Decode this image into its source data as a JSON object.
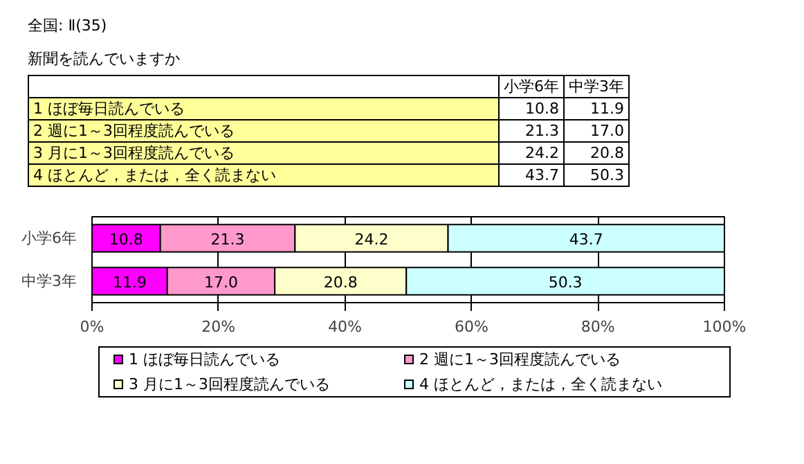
{
  "chart_data": {
    "type": "bar",
    "title": "全国: Ⅱ(35)",
    "subtitle": "新聞を読んでいますか",
    "categories": [
      "小学6年",
      "中学3年"
    ],
    "series": [
      {
        "name": "1  ほぼ毎日読んでいる",
        "color": "#ff00ff",
        "values": [
          10.8,
          11.9
        ],
        "value_labels": [
          "10.8",
          "11.9"
        ]
      },
      {
        "name": "2  週に1～3回程度読んでいる",
        "color": "#ff99cc",
        "values": [
          21.3,
          17.0
        ],
        "value_labels": [
          "21.3",
          "17.0"
        ]
      },
      {
        "name": "3  月に1～3回程度読んでいる",
        "color": "#ffffcc",
        "values": [
          24.2,
          20.8
        ],
        "value_labels": [
          "24.2",
          "20.8"
        ]
      },
      {
        "name": "4  ほとんど，または，全く読まない",
        "color": "#ccffff",
        "values": [
          43.7,
          50.3
        ],
        "value_labels": [
          "43.7",
          "50.3"
        ]
      }
    ],
    "stacked": true,
    "orientation": "horizontal",
    "xlim": [
      0,
      100
    ],
    "xticks": [
      {
        "value": 0,
        "label": "0%"
      },
      {
        "value": 20,
        "label": "20%"
      },
      {
        "value": 40,
        "label": "40%"
      },
      {
        "value": 60,
        "label": "60%"
      },
      {
        "value": 80,
        "label": "80%"
      },
      {
        "value": 100,
        "label": "100%"
      }
    ],
    "grid": "x",
    "legend": "bottom"
  }
}
